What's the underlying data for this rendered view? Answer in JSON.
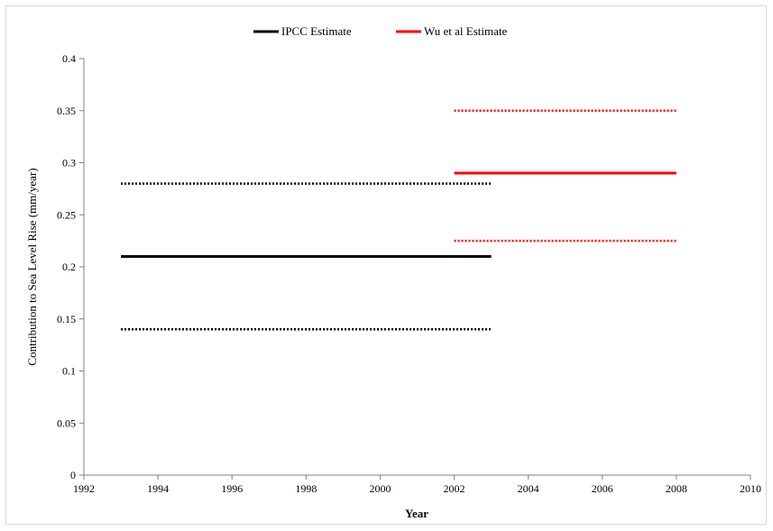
{
  "chart_data": {
    "type": "line",
    "title": "",
    "xlabel": "Year",
    "ylabel": "Contribution to Sea Level Rise (mm/year)",
    "xlim": [
      1992,
      2010
    ],
    "ylim": [
      0,
      0.4
    ],
    "x_ticks": [
      "1992",
      "1994",
      "1996",
      "1998",
      "2000",
      "2002",
      "2004",
      "2006",
      "2008",
      "2010"
    ],
    "y_ticks": [
      "0",
      "0.05",
      "0.1",
      "0.15",
      "0.2",
      "0.25",
      "0.3",
      "0.35",
      "0.4"
    ],
    "grid": false,
    "legend_position": "top-center",
    "legend": [
      {
        "label": "IPCC Estimate",
        "color": "#000000"
      },
      {
        "label": "Wu et al Estimate",
        "color": "#ff0000"
      }
    ],
    "series": [
      {
        "name": "IPCC Estimate",
        "color": "#000000",
        "style": "solid",
        "x": [
          1993,
          2003
        ],
        "y": [
          0.21,
          0.21
        ]
      },
      {
        "color": "#000000",
        "style": "dotted",
        "x": [
          1993,
          2003
        ],
        "y": [
          0.28,
          0.28
        ]
      },
      {
        "color": "#000000",
        "style": "dotted",
        "x": [
          1993,
          2003
        ],
        "y": [
          0.14,
          0.14
        ]
      },
      {
        "name": "Wu et al Estimate",
        "color": "#ff0000",
        "style": "solid",
        "x": [
          2002,
          2008
        ],
        "y": [
          0.29,
          0.29
        ]
      },
      {
        "color": "#ff0000",
        "style": "dotted",
        "x": [
          2002,
          2008
        ],
        "y": [
          0.35,
          0.35
        ]
      },
      {
        "color": "#ff0000",
        "style": "dotted",
        "x": [
          2002,
          2008
        ],
        "y": [
          0.225,
          0.225
        ]
      }
    ]
  }
}
